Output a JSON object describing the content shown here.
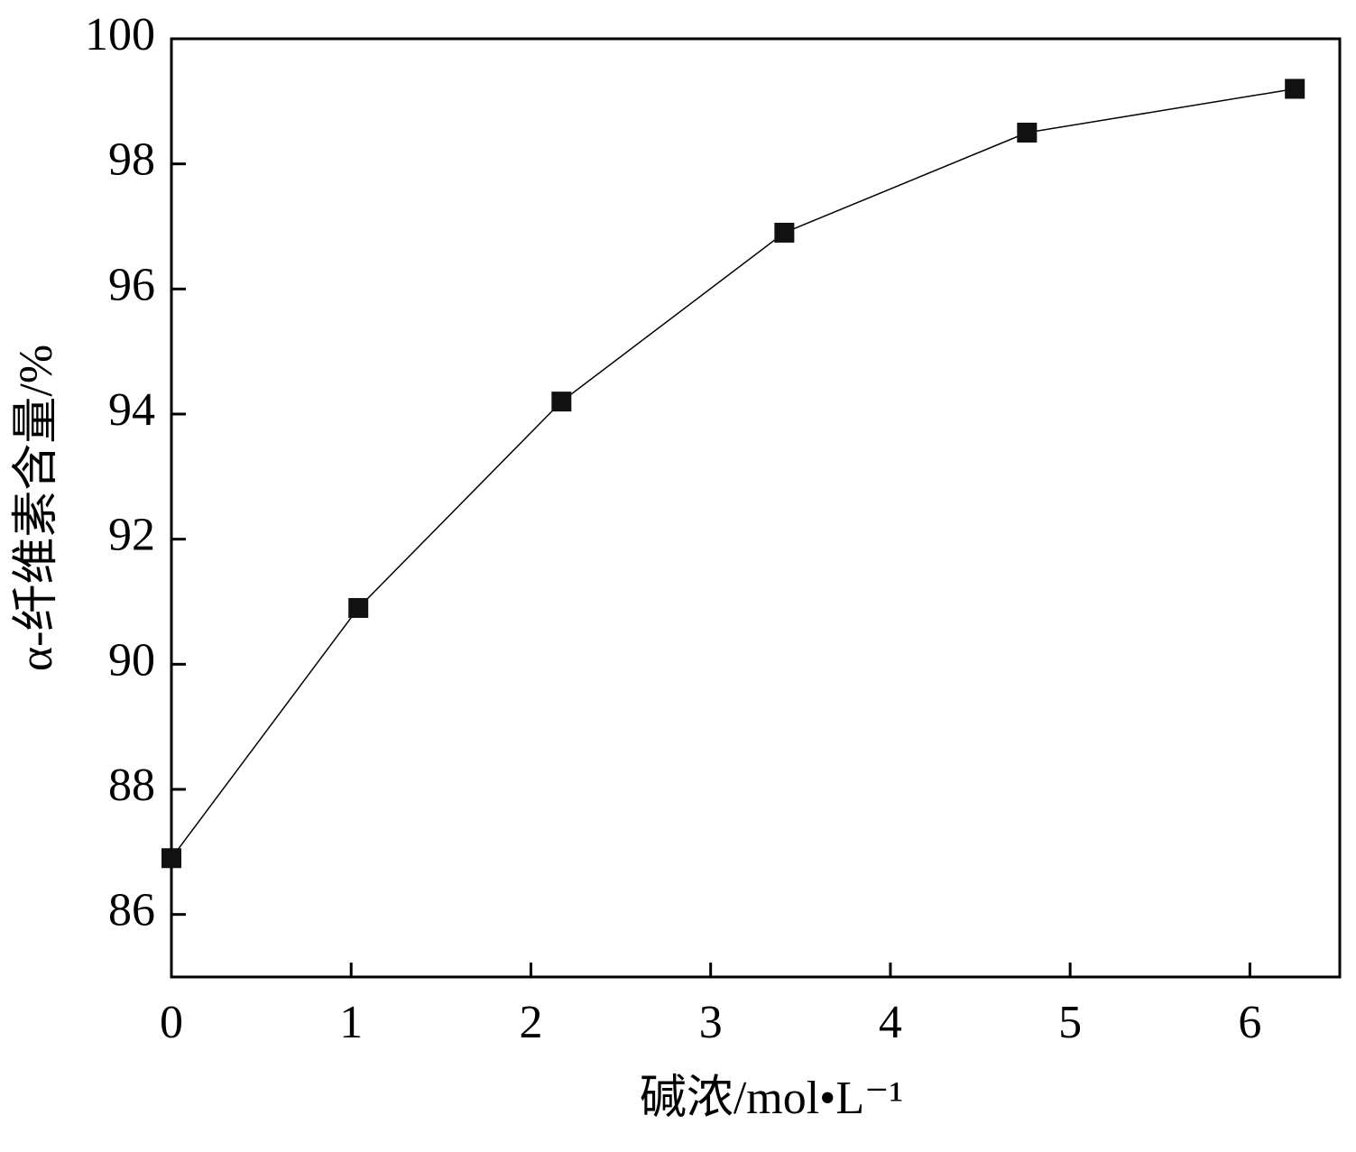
{
  "chart_data": {
    "type": "line",
    "x_label": "碱浓/mol•L⁻¹",
    "y_label": "α-纤维素含量/%",
    "x": [
      0,
      1.04,
      2.17,
      3.41,
      4.76,
      6.25
    ],
    "series": [
      {
        "color": "#000000",
        "values": [
          86.9,
          90.9,
          94.2,
          96.9,
          98.5,
          99.2
        ]
      }
    ],
    "xlim": [
      0,
      6.5
    ],
    "xticks": [
      0,
      1,
      2,
      3,
      4,
      5,
      6
    ],
    "ylim": [
      85,
      100
    ],
    "yticks": [
      86,
      88,
      90,
      92,
      94,
      96,
      98,
      100
    ],
    "marker": "square",
    "grid": false
  }
}
